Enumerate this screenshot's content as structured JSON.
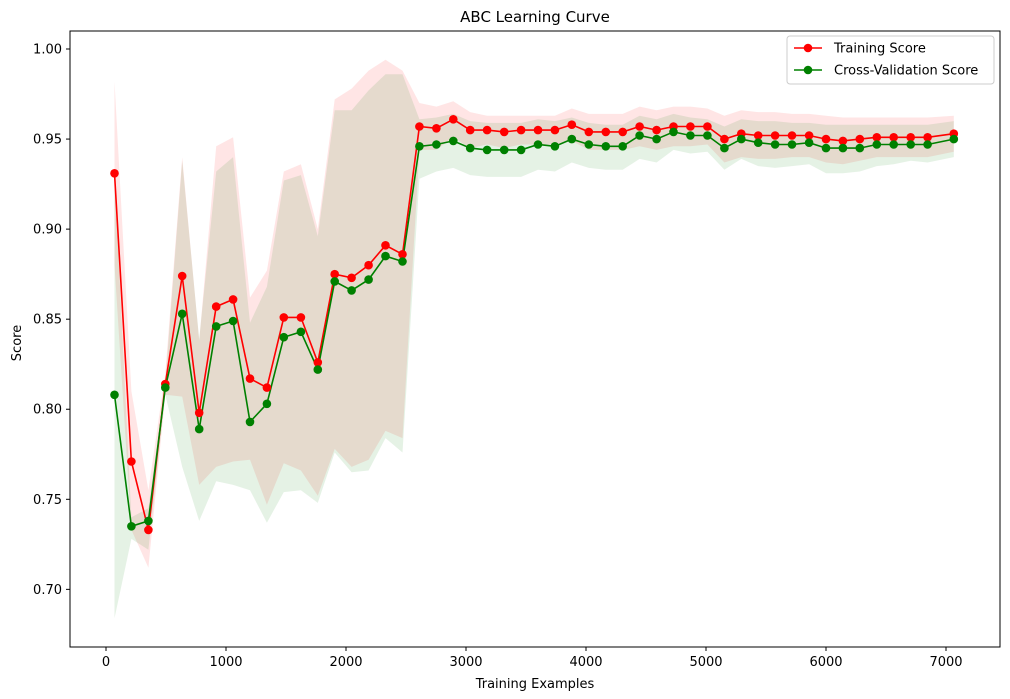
{
  "chart_data": {
    "type": "line",
    "title": "ABC Learning Curve",
    "xlabel": "Training Examples",
    "ylabel": "Score",
    "xlim": [
      -300,
      7450
    ],
    "ylim": [
      0.668,
      1.01
    ],
    "xticks": [
      0,
      1000,
      2000,
      3000,
      4000,
      5000,
      6000,
      7000
    ],
    "xtick_labels": [
      "0",
      "1000",
      "2000",
      "3000",
      "4000",
      "5000",
      "6000",
      "7000"
    ],
    "yticks": [
      0.7,
      0.75,
      0.8,
      0.85,
      0.9,
      0.95,
      1.0
    ],
    "ytick_labels": [
      "0.70",
      "0.75",
      "0.80",
      "0.85",
      "0.90",
      "0.95",
      "1.00"
    ],
    "grid": false,
    "legend_position": "top-right",
    "x": [
      71,
      212,
      353,
      494,
      635,
      777,
      918,
      1059,
      1200,
      1341,
      1482,
      1624,
      1765,
      1906,
      2047,
      2188,
      2329,
      2471,
      2612,
      2753,
      2894,
      3035,
      3176,
      3318,
      3459,
      3600,
      3741,
      3882,
      4023,
      4165,
      4306,
      4447,
      4588,
      4729,
      4870,
      5012,
      5153,
      5294,
      5435,
      5576,
      5717,
      5859,
      6000,
      6141,
      6282,
      6423,
      6564,
      6706,
      6847,
      7065
    ],
    "series": [
      {
        "name": "Training Score",
        "color": "#ff0000",
        "band_color": "#ffcccc",
        "values": [
          0.931,
          0.771,
          0.733,
          0.814,
          0.874,
          0.798,
          0.857,
          0.861,
          0.817,
          0.812,
          0.851,
          0.851,
          0.826,
          0.875,
          0.873,
          0.88,
          0.891,
          0.886,
          0.957,
          0.956,
          0.961,
          0.955,
          0.955,
          0.954,
          0.955,
          0.955,
          0.955,
          0.958,
          0.954,
          0.954,
          0.954,
          0.957,
          0.955,
          0.957,
          0.957,
          0.957,
          0.95,
          0.953,
          0.952,
          0.952,
          0.952,
          0.952,
          0.95,
          0.949,
          0.95,
          0.951,
          0.951,
          0.951,
          0.951,
          0.953
        ],
        "upper": [
          0.982,
          0.81,
          0.755,
          0.82,
          0.94,
          0.838,
          0.946,
          0.951,
          0.862,
          0.877,
          0.932,
          0.936,
          0.9,
          0.972,
          0.978,
          0.988,
          0.994,
          0.988,
          0.97,
          0.968,
          0.971,
          0.965,
          0.963,
          0.963,
          0.963,
          0.963,
          0.963,
          0.967,
          0.964,
          0.964,
          0.964,
          0.968,
          0.966,
          0.968,
          0.968,
          0.967,
          0.963,
          0.966,
          0.965,
          0.965,
          0.964,
          0.964,
          0.963,
          0.962,
          0.962,
          0.962,
          0.962,
          0.962,
          0.962,
          0.963
        ],
        "lower": [
          0.88,
          0.733,
          0.712,
          0.808,
          0.807,
          0.758,
          0.768,
          0.771,
          0.772,
          0.747,
          0.77,
          0.766,
          0.752,
          0.778,
          0.768,
          0.772,
          0.788,
          0.784,
          0.944,
          0.944,
          0.951,
          0.945,
          0.947,
          0.945,
          0.947,
          0.947,
          0.947,
          0.949,
          0.944,
          0.944,
          0.944,
          0.946,
          0.944,
          0.946,
          0.946,
          0.947,
          0.937,
          0.94,
          0.939,
          0.939,
          0.94,
          0.94,
          0.937,
          0.936,
          0.938,
          0.94,
          0.94,
          0.94,
          0.94,
          0.943
        ]
      },
      {
        "name": "Cross-Validation Score",
        "color": "#008000",
        "band_color": "#c8e6c8",
        "values": [
          0.808,
          0.735,
          0.738,
          0.812,
          0.853,
          0.789,
          0.846,
          0.849,
          0.793,
          0.803,
          0.84,
          0.843,
          0.822,
          0.871,
          0.866,
          0.872,
          0.885,
          0.882,
          0.946,
          0.947,
          0.949,
          0.945,
          0.944,
          0.944,
          0.944,
          0.947,
          0.946,
          0.95,
          0.947,
          0.946,
          0.946,
          0.952,
          0.95,
          0.954,
          0.952,
          0.952,
          0.945,
          0.95,
          0.948,
          0.947,
          0.947,
          0.948,
          0.945,
          0.945,
          0.945,
          0.947,
          0.947,
          0.947,
          0.947,
          0.95
        ],
        "upper": [
          0.93,
          0.74,
          0.745,
          0.815,
          0.938,
          0.839,
          0.932,
          0.94,
          0.848,
          0.868,
          0.927,
          0.93,
          0.896,
          0.966,
          0.966,
          0.977,
          0.986,
          0.986,
          0.961,
          0.962,
          0.964,
          0.96,
          0.959,
          0.959,
          0.959,
          0.961,
          0.96,
          0.962,
          0.959,
          0.958,
          0.958,
          0.963,
          0.961,
          0.964,
          0.962,
          0.961,
          0.957,
          0.961,
          0.96,
          0.96,
          0.959,
          0.959,
          0.958,
          0.958,
          0.958,
          0.958,
          0.958,
          0.958,
          0.958,
          0.96
        ],
        "lower": [
          0.684,
          0.728,
          0.722,
          0.808,
          0.768,
          0.738,
          0.76,
          0.758,
          0.755,
          0.737,
          0.754,
          0.755,
          0.748,
          0.776,
          0.765,
          0.766,
          0.784,
          0.776,
          0.928,
          0.932,
          0.934,
          0.93,
          0.929,
          0.929,
          0.929,
          0.933,
          0.932,
          0.937,
          0.934,
          0.933,
          0.933,
          0.939,
          0.937,
          0.944,
          0.942,
          0.943,
          0.933,
          0.939,
          0.935,
          0.934,
          0.935,
          0.936,
          0.931,
          0.931,
          0.932,
          0.935,
          0.936,
          0.938,
          0.937,
          0.94
        ]
      }
    ]
  }
}
